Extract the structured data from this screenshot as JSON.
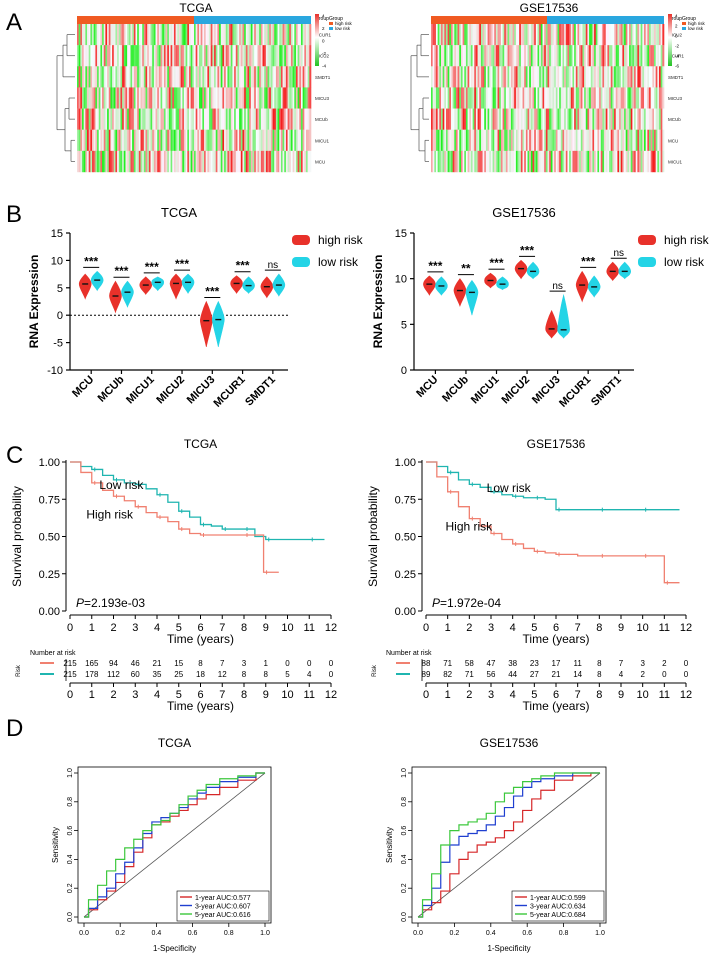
{
  "colors": {
    "high_risk": "#e8312a",
    "low_risk": "#24d4e6",
    "km_high": "#f08070",
    "km_low": "#1fb5b0",
    "group_high": "#f05a22",
    "group_low": "#2aa7df",
    "roc_1y": "#d62728",
    "roc_3y": "#1f3fd0",
    "roc_5y": "#3cc83c"
  },
  "panels": {
    "A": "A",
    "B": "B",
    "C": "C",
    "D": "D"
  },
  "heatmaps": [
    {
      "title": "TCGA",
      "genes": [
        "MCUR1",
        "MICU2",
        "SMDT1",
        "MICU3",
        "MCUb",
        "MICU1",
        "MCU"
      ],
      "legend": {
        "group_title": "Group",
        "high": "high risk",
        "low": "low risk",
        "scale_ticks": [
          "4",
          "2",
          "0",
          "-2",
          "-4"
        ]
      }
    },
    {
      "title": "GSE17536",
      "genes": [
        "MICU2",
        "MCUR1",
        "SMDT1",
        "MICU3",
        "MCUb",
        "MCU",
        "MICU1"
      ],
      "legend": {
        "group_title": "Group",
        "high": "high risk",
        "low": "low risk",
        "scale_ticks": [
          "4",
          "2",
          "0",
          "-2",
          "-4",
          "-6"
        ]
      }
    }
  ],
  "chart_data": [
    {
      "type": "violin",
      "title": "TCGA",
      "ylabel": "RNA Expression",
      "ylim": [
        -10,
        15
      ],
      "yticks": [
        "15",
        "10",
        "5",
        "0",
        "-5",
        "-10"
      ],
      "categories": [
        "MCU",
        "MCUb",
        "MICU1",
        "MICU2",
        "MICU3",
        "MCUR1",
        "SMDT1"
      ],
      "significance": [
        "***",
        "***",
        "***",
        "***",
        "***",
        "***",
        "ns"
      ],
      "legend": [
        "high risk",
        "low risk"
      ],
      "series": [
        {
          "name": "high risk",
          "medians": [
            5.7,
            3.5,
            5.5,
            5.8,
            -1.0,
            5.8,
            5.2
          ],
          "mins": [
            3.0,
            0.5,
            3.8,
            3.0,
            -5.8,
            4.0,
            3.2
          ],
          "maxs": [
            7.5,
            6.2,
            7.0,
            7.5,
            2.5,
            7.2,
            7.0
          ]
        },
        {
          "name": "low risk",
          "medians": [
            6.4,
            4.2,
            6.0,
            6.0,
            -0.8,
            5.4,
            5.5
          ],
          "mins": [
            4.5,
            1.5,
            4.5,
            4.0,
            -5.8,
            4.0,
            3.5
          ],
          "maxs": [
            8.0,
            6.2,
            7.0,
            7.5,
            2.5,
            7.0,
            7.5
          ]
        }
      ],
      "reference_line": 0
    },
    {
      "type": "violin",
      "title": "GSE17536",
      "ylabel": "RNA Expression",
      "ylim": [
        0,
        15
      ],
      "yticks": [
        "15",
        "10",
        "5",
        "0"
      ],
      "categories": [
        "MCU",
        "MCUb",
        "MICU1",
        "MICU2",
        "MICU3",
        "MCUR1",
        "SMDT1"
      ],
      "significance": [
        "***",
        "**",
        "***",
        "***",
        "ns",
        "***",
        "ns"
      ],
      "legend": [
        "high risk",
        "low risk"
      ],
      "series": [
        {
          "name": "high risk",
          "medians": [
            9.4,
            8.7,
            9.8,
            11.1,
            4.5,
            9.3,
            10.8
          ],
          "mins": [
            8.2,
            7.0,
            9.0,
            10.0,
            3.5,
            7.5,
            9.8
          ],
          "maxs": [
            10.3,
            10.0,
            10.6,
            12.0,
            6.5,
            10.8,
            11.8
          ]
        },
        {
          "name": "low risk",
          "medians": [
            9.2,
            8.5,
            9.4,
            10.8,
            4.4,
            9.1,
            10.8
          ],
          "mins": [
            8.2,
            6.0,
            8.8,
            10.0,
            3.5,
            8.0,
            10.0
          ],
          "maxs": [
            10.2,
            9.8,
            10.2,
            11.8,
            8.2,
            10.3,
            11.8
          ]
        }
      ]
    },
    {
      "type": "line",
      "title": "TCGA",
      "xlabel": "Time (years)",
      "ylabel": "Survival probability",
      "xlim": [
        0,
        12
      ],
      "ylim": [
        0,
        1
      ],
      "xticks": [
        "0",
        "1",
        "2",
        "3",
        "4",
        "5",
        "6",
        "7",
        "8",
        "9",
        "10",
        "11",
        "12"
      ],
      "yticks": [
        "1.00",
        "0.75",
        "0.50",
        "0.25",
        "0.00"
      ],
      "p_label": "P",
      "p_value": "=2.193e-03",
      "series": [
        {
          "name": "Low risk",
          "x": [
            0,
            0.5,
            1,
            1.5,
            2,
            2.5,
            3,
            3.5,
            4,
            4.5,
            5,
            5.5,
            6,
            6.5,
            7,
            7.5,
            8,
            8.5,
            9,
            10,
            11,
            11.7
          ],
          "y": [
            1.0,
            0.97,
            0.95,
            0.91,
            0.88,
            0.86,
            0.85,
            0.82,
            0.78,
            0.73,
            0.67,
            0.63,
            0.58,
            0.57,
            0.55,
            0.55,
            0.55,
            0.5,
            0.48,
            0.48,
            0.48,
            0.48
          ]
        },
        {
          "name": "High risk",
          "x": [
            0,
            0.5,
            1,
            1.5,
            2,
            2.5,
            3,
            3.5,
            4,
            4.5,
            5,
            5.5,
            6,
            7,
            8,
            8.9,
            8.9,
            9.6
          ],
          "y": [
            1.0,
            0.93,
            0.86,
            0.81,
            0.77,
            0.74,
            0.7,
            0.66,
            0.63,
            0.6,
            0.55,
            0.52,
            0.51,
            0.51,
            0.51,
            0.51,
            0.26,
            0.26
          ]
        }
      ],
      "risk_table": {
        "title": "Number at risk",
        "row_label": "Risk",
        "rows": [
          [
            "215",
            "165",
            "94",
            "46",
            "21",
            "15",
            "8",
            "7",
            "3",
            "1",
            "0",
            "0",
            "0"
          ],
          [
            "215",
            "178",
            "112",
            "60",
            "35",
            "25",
            "18",
            "12",
            "8",
            "8",
            "5",
            "4",
            "0"
          ]
        ]
      }
    },
    {
      "type": "line",
      "title": "GSE17536",
      "xlabel": "Time (years)",
      "ylabel": "Survival probability",
      "xlim": [
        0,
        12
      ],
      "ylim": [
        0,
        1
      ],
      "xticks": [
        "0",
        "1",
        "2",
        "3",
        "4",
        "5",
        "6",
        "7",
        "8",
        "9",
        "10",
        "11",
        "12"
      ],
      "yticks": [
        "1.00",
        "0.75",
        "0.50",
        "0.25",
        "0.00"
      ],
      "p_label": "P",
      "p_value": "=1.972e-04",
      "series": [
        {
          "name": "Low risk",
          "x": [
            0,
            0.5,
            1,
            1.5,
            2,
            2.5,
            3,
            3.5,
            4,
            4.5,
            5,
            5.5,
            6,
            7,
            8,
            9,
            10,
            11,
            11.7
          ],
          "y": [
            1.0,
            0.97,
            0.93,
            0.88,
            0.85,
            0.83,
            0.8,
            0.78,
            0.77,
            0.76,
            0.76,
            0.75,
            0.68,
            0.68,
            0.68,
            0.68,
            0.68,
            0.68,
            0.68
          ]
        },
        {
          "name": "High risk",
          "x": [
            0,
            0.5,
            1,
            1.5,
            2,
            2.5,
            3,
            3.5,
            4,
            4.5,
            5,
            5.5,
            6,
            7,
            8,
            9,
            10,
            11,
            11,
            11.7
          ],
          "y": [
            1.0,
            0.9,
            0.8,
            0.7,
            0.62,
            0.57,
            0.52,
            0.48,
            0.45,
            0.42,
            0.4,
            0.39,
            0.38,
            0.37,
            0.37,
            0.37,
            0.37,
            0.37,
            0.19,
            0.19
          ]
        }
      ],
      "risk_table": {
        "title": "Number at risk",
        "row_label": "Risk",
        "rows": [
          [
            "88",
            "71",
            "58",
            "47",
            "38",
            "23",
            "17",
            "11",
            "8",
            "7",
            "3",
            "2",
            "0"
          ],
          [
            "89",
            "82",
            "71",
            "56",
            "44",
            "27",
            "21",
            "14",
            "8",
            "4",
            "2",
            "0",
            "0"
          ]
        ]
      }
    },
    {
      "type": "line",
      "subtype": "roc",
      "title": "TCGA",
      "xlabel": "1-Specificity",
      "ylabel": "Sensitivity",
      "xlim": [
        0,
        1
      ],
      "ylim": [
        0,
        1
      ],
      "ticks": [
        "0.0",
        "0.2",
        "0.4",
        "0.6",
        "0.8",
        "1.0"
      ],
      "series": [
        {
          "name": "1-year AUC:0.577",
          "x": [
            0,
            0.05,
            0.1,
            0.15,
            0.2,
            0.25,
            0.3,
            0.35,
            0.4,
            0.45,
            0.5,
            0.55,
            0.6,
            0.65,
            0.7,
            0.8,
            0.9,
            1.0
          ],
          "y": [
            0,
            0.05,
            0.12,
            0.18,
            0.24,
            0.35,
            0.45,
            0.55,
            0.64,
            0.66,
            0.7,
            0.74,
            0.78,
            0.82,
            0.85,
            0.9,
            0.95,
            1.0
          ]
        },
        {
          "name": "3-year AUC:0.607",
          "x": [
            0,
            0.05,
            0.1,
            0.15,
            0.2,
            0.25,
            0.3,
            0.35,
            0.4,
            0.45,
            0.5,
            0.55,
            0.6,
            0.65,
            0.7,
            0.8,
            0.9,
            1.0
          ],
          "y": [
            0,
            0.06,
            0.14,
            0.2,
            0.3,
            0.38,
            0.48,
            0.58,
            0.66,
            0.69,
            0.72,
            0.76,
            0.82,
            0.86,
            0.9,
            0.94,
            0.97,
            1.0
          ]
        },
        {
          "name": "5-year AUC:0.616",
          "x": [
            0,
            0.05,
            0.1,
            0.15,
            0.2,
            0.25,
            0.3,
            0.35,
            0.4,
            0.45,
            0.5,
            0.55,
            0.6,
            0.65,
            0.7,
            0.8,
            0.9,
            1.0
          ],
          "y": [
            0,
            0.12,
            0.22,
            0.32,
            0.4,
            0.48,
            0.54,
            0.6,
            0.64,
            0.67,
            0.72,
            0.78,
            0.84,
            0.88,
            0.92,
            0.96,
            0.98,
            1.0
          ]
        }
      ]
    },
    {
      "type": "line",
      "subtype": "roc",
      "title": "GSE17536",
      "xlabel": "1-Specificity",
      "ylabel": "Sensitivity",
      "xlim": [
        0,
        1
      ],
      "ylim": [
        0,
        1
      ],
      "ticks": [
        "0.0",
        "0.2",
        "0.4",
        "0.6",
        "0.8",
        "1.0"
      ],
      "series": [
        {
          "name": "1-year AUC:0.599",
          "x": [
            0,
            0.05,
            0.1,
            0.15,
            0.2,
            0.25,
            0.3,
            0.35,
            0.4,
            0.45,
            0.5,
            0.55,
            0.6,
            0.65,
            0.7,
            0.8,
            0.9,
            1.0
          ],
          "y": [
            0,
            0.05,
            0.1,
            0.18,
            0.3,
            0.4,
            0.45,
            0.5,
            0.52,
            0.55,
            0.6,
            0.66,
            0.74,
            0.82,
            0.88,
            0.95,
            0.98,
            1.0
          ]
        },
        {
          "name": "3-year AUC:0.634",
          "x": [
            0,
            0.05,
            0.1,
            0.15,
            0.2,
            0.25,
            0.3,
            0.35,
            0.4,
            0.45,
            0.5,
            0.55,
            0.6,
            0.65,
            0.7,
            0.8,
            0.9,
            1.0
          ],
          "y": [
            0,
            0.08,
            0.2,
            0.38,
            0.5,
            0.56,
            0.58,
            0.6,
            0.64,
            0.7,
            0.76,
            0.84,
            0.9,
            0.94,
            0.96,
            0.98,
            1.0,
            1.0
          ]
        },
        {
          "name": "5-year AUC:0.684",
          "x": [
            0,
            0.05,
            0.1,
            0.15,
            0.2,
            0.25,
            0.3,
            0.35,
            0.4,
            0.45,
            0.5,
            0.55,
            0.6,
            0.65,
            0.7,
            0.8,
            0.9,
            1.0
          ],
          "y": [
            0,
            0.12,
            0.3,
            0.5,
            0.6,
            0.64,
            0.66,
            0.68,
            0.72,
            0.8,
            0.86,
            0.9,
            0.94,
            0.96,
            0.98,
            1.0,
            1.0,
            1.0
          ]
        }
      ]
    }
  ]
}
